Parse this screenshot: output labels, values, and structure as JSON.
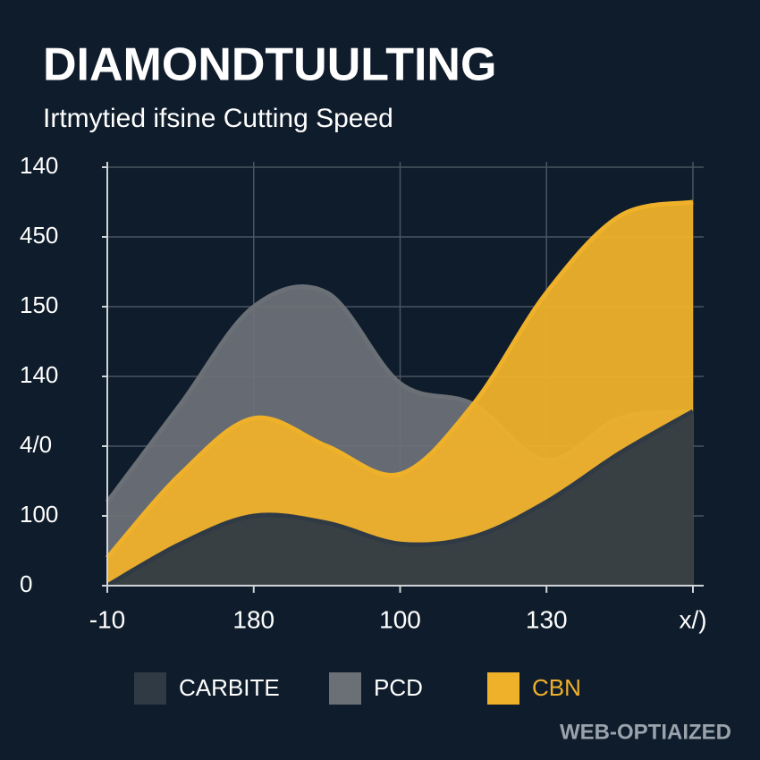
{
  "chart_data": {
    "type": "area",
    "title": "DIAMONDTUULTING",
    "subtitle": "Irtmytied ifsine Cutting Speed",
    "footer": "WEB-OPTIAIZED",
    "x": [
      0,
      1,
      2,
      3,
      4,
      5,
      6,
      7,
      8
    ],
    "xlim": [
      0,
      8
    ],
    "xticks": [
      {
        "value": 0,
        "label": "-10"
      },
      {
        "value": 2,
        "label": "180"
      },
      {
        "value": 4,
        "label": "100"
      },
      {
        "value": 6,
        "label": "130"
      },
      {
        "value": 8,
        "label": "x/)"
      }
    ],
    "ylim": [
      0,
      6
    ],
    "yticks": [
      0,
      {
        "value": 1,
        "label": "100"
      },
      {
        "value": 2,
        "label": "4/0"
      },
      {
        "value": 3,
        "label": "140"
      },
      {
        "value": 4,
        "label": "150"
      },
      {
        "value": 5,
        "label": "450"
      },
      {
        "value": 6,
        "label": "140"
      }
    ],
    "grid": true,
    "series": [
      {
        "name": "PCD",
        "color": "#6b7077",
        "values": [
          1.2,
          2.6,
          4.0,
          4.2,
          2.9,
          2.6,
          1.8,
          2.4,
          2.5
        ]
      },
      {
        "name": "CBN",
        "color": "#efb12a",
        "values": [
          0.4,
          1.6,
          2.4,
          2.0,
          1.6,
          2.6,
          4.2,
          5.3,
          5.5
        ]
      },
      {
        "name": "CARBITE",
        "color": "#2f3a45",
        "values": [
          0,
          0.6,
          1.0,
          0.9,
          0.6,
          0.7,
          1.2,
          1.9,
          2.5
        ]
      }
    ],
    "legend_order": [
      2,
      0,
      1
    ]
  }
}
